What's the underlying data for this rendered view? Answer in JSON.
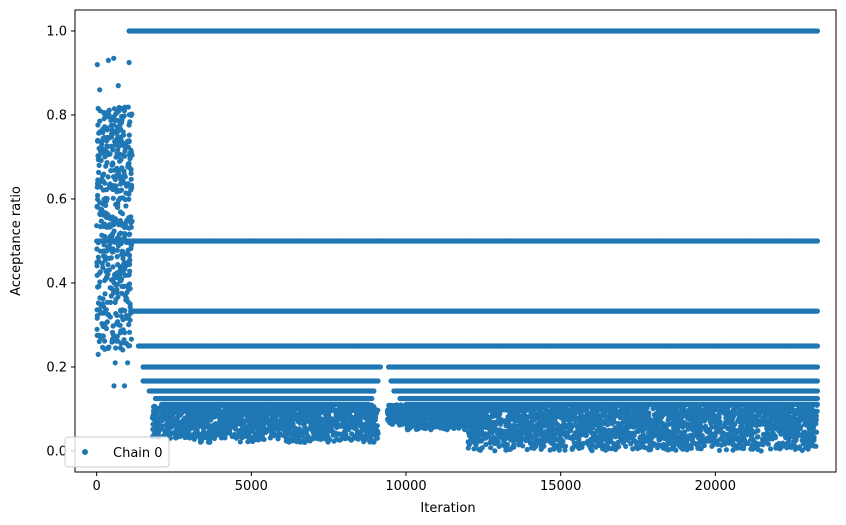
{
  "chart_data": {
    "type": "scatter",
    "title": "",
    "xlabel": "Iteration",
    "ylabel": "Acceptance ratio",
    "xlim": [
      -700,
      23900
    ],
    "ylim": [
      -0.05,
      1.05
    ],
    "x_ticks": [
      0,
      5000,
      10000,
      15000,
      20000
    ],
    "x_tick_labels": [
      "0",
      "5000",
      "10000",
      "15000",
      "20000"
    ],
    "y_ticks": [
      0.0,
      0.2,
      0.4,
      0.6,
      0.8,
      1.0
    ],
    "y_tick_labels": [
      "0.0",
      "0.2",
      "0.4",
      "0.6",
      "0.8",
      "1.0"
    ],
    "grid": false,
    "legend": {
      "position": "lower-left",
      "entries": [
        "Chain 0"
      ]
    },
    "marker_color": "#1f77b4",
    "series": [
      {
        "name": "Chain 0",
        "x_range": [
          0,
          23300
        ],
        "burn_in": {
          "x_range": [
            0,
            1150
          ],
          "y_range": [
            0.15,
            0.93
          ],
          "sample_points": [
            {
              "x": 20,
              "y": 0.92
            },
            {
              "x": 380,
              "y": 0.93
            },
            {
              "x": 550,
              "y": 0.935
            },
            {
              "x": 1050,
              "y": 0.925
            },
            {
              "x": 100,
              "y": 0.86
            },
            {
              "x": 700,
              "y": 0.87
            },
            {
              "x": 900,
              "y": 0.81
            },
            {
              "x": 50,
              "y": 0.23
            },
            {
              "x": 560,
              "y": 0.155
            },
            {
              "x": 900,
              "y": 0.155
            },
            {
              "x": 600,
              "y": 0.21
            },
            {
              "x": 1000,
              "y": 0.21
            }
          ]
        },
        "bands": [
          {
            "y": 1.0,
            "x_range": [
              1050,
              23300
            ]
          },
          {
            "y": 0.5,
            "x_range": [
              0,
              23300
            ]
          },
          {
            "y": 0.333,
            "x_range": [
              1100,
              23300
            ]
          },
          {
            "y": 0.25,
            "x_range": [
              1350,
              23300
            ]
          },
          {
            "y": 0.2,
            "x_range": [
              1500,
              23300
            ]
          },
          {
            "y": 0.1667,
            "x_range": [
              1500,
              23300
            ]
          },
          {
            "y": 0.1429,
            "x_range": [
              1700,
              23300
            ]
          },
          {
            "y": 0.125,
            "x_range": [
              1900,
              23300
            ]
          },
          {
            "y": 0.111,
            "x_range": [
              2100,
              23300
            ]
          }
        ],
        "band_gaps": [
          {
            "band": 0.2,
            "x_range": [
              9200,
              9400
            ]
          },
          {
            "band": 0.1667,
            "x_range": [
              9100,
              9500
            ]
          },
          {
            "band": 0.1429,
            "x_range": [
              9000,
              9600
            ]
          },
          {
            "band": 0.125,
            "x_range": [
              8900,
              9800
            ]
          },
          {
            "band": 0.111,
            "x_range": [
              8800,
              10000
            ]
          }
        ],
        "low_cloud": [
          {
            "x_range": [
              1800,
              3000
            ],
            "y_range": [
              0.03,
              0.11
            ]
          },
          {
            "x_range": [
              3000,
              9100
            ],
            "y_range": [
              0.02,
              0.11
            ]
          },
          {
            "x_range": [
              9400,
              10000
            ],
            "y_range": [
              0.06,
              0.11
            ]
          },
          {
            "x_range": [
              10000,
              12000
            ],
            "y_range": [
              0.05,
              0.11
            ]
          },
          {
            "x_range": [
              12000,
              23300
            ],
            "y_range": [
              0.0,
              0.11
            ]
          }
        ]
      }
    ]
  }
}
